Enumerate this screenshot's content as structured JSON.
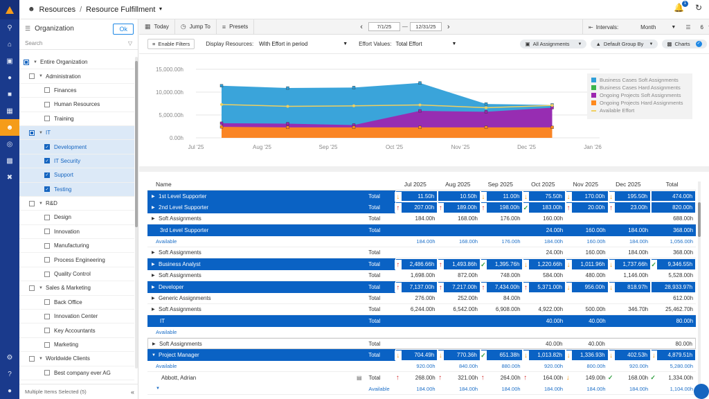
{
  "header": {
    "breadcrumb_root": "Resources",
    "breadcrumb_separator": "/",
    "breadcrumb_current": "Resource Fulfillment",
    "notification_count": "1"
  },
  "panel": {
    "title": "Organization",
    "ok_label": "Ok",
    "search_placeholder": "Search",
    "footer": "Multiple Items Selected (5)",
    "nodes": [
      {
        "label": "Entire Organization",
        "level": 0,
        "check": "part",
        "twisty": "▼",
        "selected": false
      },
      {
        "label": "Administration",
        "level": 1,
        "check": "off",
        "twisty": "▼",
        "selected": false
      },
      {
        "label": "Finances",
        "level": 2,
        "check": "off",
        "twisty": "",
        "selected": false
      },
      {
        "label": "Human Resources",
        "level": 2,
        "check": "off",
        "twisty": "",
        "selected": false
      },
      {
        "label": "Training",
        "level": 2,
        "check": "off",
        "twisty": "",
        "selected": false
      },
      {
        "label": "IT",
        "level": 1,
        "check": "part",
        "twisty": "▼",
        "selected": true
      },
      {
        "label": "Development",
        "level": 2,
        "check": "on",
        "twisty": "",
        "selected": true
      },
      {
        "label": "IT Security",
        "level": 2,
        "check": "on",
        "twisty": "",
        "selected": true
      },
      {
        "label": "Support",
        "level": 2,
        "check": "on",
        "twisty": "",
        "selected": true
      },
      {
        "label": "Testing",
        "level": 2,
        "check": "on",
        "twisty": "",
        "selected": true
      },
      {
        "label": "R&D",
        "level": 1,
        "check": "off",
        "twisty": "▼",
        "selected": false
      },
      {
        "label": "Design",
        "level": 2,
        "check": "off",
        "twisty": "",
        "selected": false
      },
      {
        "label": "Innovation",
        "level": 2,
        "check": "off",
        "twisty": "",
        "selected": false
      },
      {
        "label": "Manufacturing",
        "level": 2,
        "check": "off",
        "twisty": "",
        "selected": false
      },
      {
        "label": "Process Engineering",
        "level": 2,
        "check": "off",
        "twisty": "",
        "selected": false
      },
      {
        "label": "Quality Control",
        "level": 2,
        "check": "off",
        "twisty": "",
        "selected": false
      },
      {
        "label": "Sales & Marketing",
        "level": 1,
        "check": "off",
        "twisty": "▼",
        "selected": false
      },
      {
        "label": "Back Office",
        "level": 2,
        "check": "off",
        "twisty": "",
        "selected": false
      },
      {
        "label": "Innovation Center",
        "level": 2,
        "check": "off",
        "twisty": "",
        "selected": false
      },
      {
        "label": "Key Accountants",
        "level": 2,
        "check": "off",
        "twisty": "",
        "selected": false
      },
      {
        "label": "Marketing",
        "level": 2,
        "check": "off",
        "twisty": "",
        "selected": false
      },
      {
        "label": "Worldwide Clients",
        "level": 1,
        "check": "off",
        "twisty": "▼",
        "selected": false
      },
      {
        "label": "Best company ever AG",
        "level": 2,
        "check": "off",
        "twisty": "",
        "selected": false
      }
    ]
  },
  "toolbar": {
    "today": "Today",
    "jump_to": "Jump To",
    "presets": "Presets",
    "date_from": "7/1/25",
    "date_to": "12/31/25",
    "intervals_label": "Intervals:",
    "intervals_value": "Month",
    "levels_value": "6"
  },
  "filters": {
    "enable_filters": "Enable Filters",
    "display_resources_label": "Display Resources:",
    "display_resources_value": "With Effort in period",
    "effort_values_label": "Effort Values:",
    "effort_values_value": "Total Effort",
    "all_assignments": "All Assignments",
    "group_by": "Default Group By",
    "charts": "Charts"
  },
  "chart_data": {
    "type": "area",
    "x": [
      "Jul '25",
      "Aug '25",
      "Sep '25",
      "Oct '25",
      "Nov '25",
      "Dec '25"
    ],
    "x_ticks": [
      "Jul '25",
      "Aug '25",
      "Sep '25",
      "Oct '25",
      "Nov '25",
      "Dec '25",
      "Jan '26"
    ],
    "y_ticks": [
      "15,000.00h",
      "10,000.00h",
      "5,000.00h",
      "0.00h"
    ],
    "ylim": [
      0,
      15000
    ],
    "series": [
      {
        "name": "Business Cases Soft Assignments",
        "color": "#2f9fd8",
        "values": [
          11400,
          10900,
          11000,
          12000,
          7400,
          7200
        ]
      },
      {
        "name": "Business Cases Hard Assignments",
        "color": "#3cb44b",
        "values": [
          3100,
          3100,
          2800,
          5800,
          5700,
          6500
        ]
      },
      {
        "name": "Ongoing Projects Soft Assignments",
        "color": "#9c27b0",
        "values": [
          3200,
          3100,
          2800,
          5900,
          5700,
          6600
        ]
      },
      {
        "name": "Ongoing Projects Hard Assignments",
        "color": "#ff8a1e",
        "values": [
          2400,
          2300,
          2300,
          2300,
          2300,
          2300
        ]
      },
      {
        "name": "Available Effort",
        "color": "#f0d060",
        "values": [
          7300,
          6900,
          7000,
          7200,
          6600,
          7100
        ]
      }
    ]
  },
  "grid": {
    "headers": [
      "Name",
      "Jul 2025",
      "Aug 2025",
      "Sep 2025",
      "Oct 2025",
      "Nov 2025",
      "Dec 2025",
      "Total"
    ],
    "rows": [
      {
        "type": "blue",
        "caret": "▶",
        "name": "1st Level Supporter",
        "tot": "Total",
        "vals": [
          "11.50h",
          "10.50h",
          "11.00h",
          "75.50h",
          "170.00h",
          "195.50h",
          "474.00h"
        ],
        "marks": [
          "dn",
          "",
          "dn",
          "dn",
          "dn",
          "dn",
          ""
        ],
        "boxed": true
      },
      {
        "type": "blue",
        "caret": "▶",
        "name": "2nd Level Supporter",
        "tot": "Total",
        "vals": [
          "207.00h",
          "189.00h",
          "198.00h",
          "183.00h",
          "20.00h",
          "23.00h",
          "820.00h"
        ],
        "marks": [
          "up",
          "up",
          "up",
          "ok",
          "up",
          "up",
          ""
        ],
        "boxed": true
      },
      {
        "type": "plain",
        "caret": "▶",
        "name": "Soft Assignments",
        "tot": "Total",
        "vals": [
          "184.00h",
          "168.00h",
          "176.00h",
          "160.00h",
          "",
          "",
          "688.00h"
        ],
        "marks": [
          "",
          "",
          "",
          "",
          "",
          "",
          ""
        ]
      },
      {
        "type": "blue",
        "caret": "",
        "name": "3rd Level Supporter",
        "tot": "Total",
        "vals": [
          "",
          "",
          "",
          "24.00h",
          "160.00h",
          "184.00h",
          "368.00h"
        ],
        "marks": [
          "",
          "",
          "",
          "",
          "",
          "",
          ""
        ],
        "indent": true
      },
      {
        "type": "avail",
        "caret": "",
        "name": "Available",
        "tot": "",
        "vals": [
          "184.00h",
          "168.00h",
          "176.00h",
          "184.00h",
          "160.00h",
          "184.00h",
          "1,056.00h"
        ],
        "marks": [
          "",
          "",
          "",
          "",
          "",
          "",
          ""
        ]
      },
      {
        "type": "plain",
        "caret": "▶",
        "name": "Soft Assignments",
        "tot": "Total",
        "vals": [
          "",
          "",
          "",
          "24.00h",
          "160.00h",
          "184.00h",
          "368.00h"
        ],
        "marks": [
          "",
          "",
          "",
          "",
          "",
          "",
          ""
        ]
      },
      {
        "type": "blue",
        "caret": "▶",
        "name": "Business Analyst",
        "tot": "Total",
        "vals": [
          "2,486.66h",
          "1,493.86h",
          "1,395.76h",
          "1,220.66h",
          "1,011.96h",
          "1,737.66h",
          "9,346.55h"
        ],
        "marks": [
          "up",
          "up",
          "ok",
          "dn",
          "dn",
          "dn",
          "ok"
        ],
        "boxed": true
      },
      {
        "type": "plain",
        "caret": "▶",
        "name": "Soft Assignments",
        "tot": "Total",
        "vals": [
          "1,698.00h",
          "872.00h",
          "748.00h",
          "584.00h",
          "480.00h",
          "1,146.00h",
          "5,528.00h"
        ],
        "marks": [
          "",
          "",
          "",
          "",
          "",
          "",
          ""
        ]
      },
      {
        "type": "blue",
        "caret": "▶",
        "name": "Developer",
        "tot": "Total",
        "vals": [
          "7,137.00h",
          "7,217.00h",
          "7,434.00h",
          "5,371.00h",
          "956.00h",
          "818.97h",
          "28,933.97h"
        ],
        "marks": [
          "up",
          "up",
          "up",
          "up",
          "dn",
          "dn",
          ""
        ],
        "boxed": true
      },
      {
        "type": "plain",
        "caret": "▶",
        "name": "Generic Assignments",
        "tot": "Total",
        "vals": [
          "276.00h",
          "252.00h",
          "84.00h",
          "",
          "",
          "",
          "612.00h"
        ],
        "marks": [
          "",
          "",
          "",
          "",
          "",
          "",
          ""
        ]
      },
      {
        "type": "plain",
        "caret": "▶",
        "name": "Soft Assignments",
        "tot": "Total",
        "vals": [
          "6,244.00h",
          "6,542.00h",
          "6,908.00h",
          "4,922.00h",
          "500.00h",
          "346.70h",
          "25,462.70h"
        ],
        "marks": [
          "",
          "",
          "",
          "",
          "",
          "",
          ""
        ]
      },
      {
        "type": "blue",
        "caret": "",
        "name": "IT",
        "tot": "Total",
        "vals": [
          "",
          "",
          "",
          "40.00h",
          "40.00h",
          "",
          "80.00h"
        ],
        "marks": [
          "",
          "",
          "",
          "",
          "",
          "",
          ""
        ],
        "indent": true
      },
      {
        "type": "avail",
        "caret": "",
        "name": "Available",
        "tot": "",
        "vals": [
          "",
          "",
          "",
          "",
          "",
          "",
          ""
        ],
        "marks": [
          "",
          "",
          "",
          "",
          "",
          "",
          ""
        ]
      },
      {
        "type": "lined",
        "caret": "▶",
        "name": "Soft Assignments",
        "tot": "Total",
        "vals": [
          "",
          "",
          "",
          "40.00h",
          "40.00h",
          "",
          "80.00h"
        ],
        "marks": [
          "",
          "",
          "",
          "",
          "",
          "",
          ""
        ]
      },
      {
        "type": "blue",
        "caret": "▼",
        "name": "Project Manager",
        "tot": "Total",
        "vals": [
          "704.49h",
          "770.36h",
          "651.38h",
          "1,013.82h",
          "1,336.93h",
          "402.53h",
          "4,879.51h"
        ],
        "marks": [
          "dn",
          "dn",
          "ok",
          "dn",
          "dn",
          "dn",
          "dn"
        ],
        "boxed": true
      },
      {
        "type": "avail",
        "caret": "",
        "name": "Available",
        "tot": "",
        "vals": [
          "920.00h",
          "840.00h",
          "880.00h",
          "920.00h",
          "800.00h",
          "920.00h",
          "5,280.00h"
        ],
        "marks": [
          "",
          "",
          "",
          "",
          "",
          "",
          ""
        ]
      },
      {
        "type": "white",
        "caret": "",
        "name": "Abbott, Adrian",
        "tot": "Total",
        "vals": [
          "268.00h",
          "321.00h",
          "264.00h",
          "164.00h",
          "149.00h",
          "168.00h",
          "1,334.00h"
        ],
        "marks": [
          "up",
          "up",
          "up",
          "up",
          "dn",
          "ok",
          "ok"
        ],
        "person": true
      },
      {
        "type": "avail",
        "caret": "▼",
        "name": "",
        "tot": "Available",
        "vals": [
          "184.00h",
          "184.00h",
          "184.00h",
          "184.00h",
          "184.00h",
          "184.00h",
          "1,104.00h"
        ],
        "marks": [
          "",
          "",
          "",
          "",
          "",
          "",
          ""
        ]
      }
    ]
  }
}
